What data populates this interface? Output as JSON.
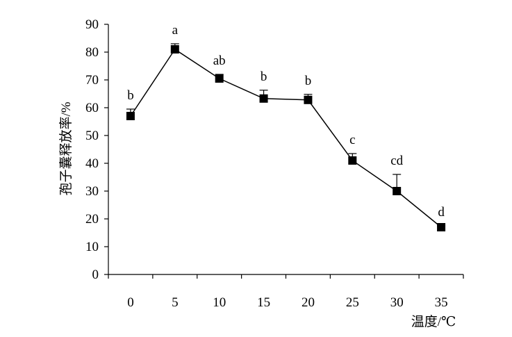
{
  "chart_data": {
    "type": "line",
    "title": "",
    "xlabel": "温度/℃",
    "ylabel": "孢子囊释放率/%",
    "x": [
      0,
      5,
      10,
      15,
      20,
      25,
      30,
      35
    ],
    "x_tick_labels": [
      "0",
      "5",
      "10",
      "15",
      "20",
      "25",
      "30",
      "35"
    ],
    "y_tick_labels": [
      "0",
      "10",
      "20",
      "30",
      "40",
      "50",
      "60",
      "70",
      "80",
      "90"
    ],
    "ylim": [
      0,
      90
    ],
    "grid": false,
    "legend": "none",
    "series": [
      {
        "values": [
          57,
          81,
          70.5,
          63.3,
          62.8,
          41,
          30,
          17
        ],
        "error": [
          2.5,
          2,
          1.5,
          3,
          2,
          2.5,
          6,
          0.5
        ],
        "significance_labels": [
          "b",
          "a",
          "ab",
          "b",
          "b",
          "c",
          "cd",
          "d"
        ],
        "color": "#000000",
        "marker": "filled-square"
      }
    ]
  }
}
